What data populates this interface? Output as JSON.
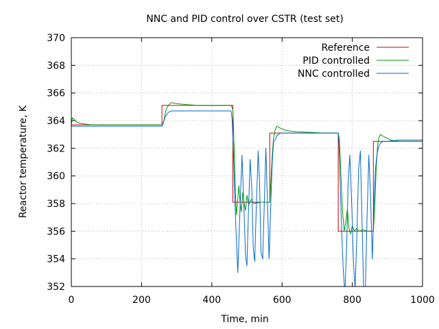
{
  "chart_data": {
    "type": "line",
    "title": "NNC and PID control over CSTR (test set)",
    "xlabel": "Time, min",
    "ylabel": "Reactor temperature, K",
    "xlim": [
      0,
      1000
    ],
    "ylim": [
      352,
      370
    ],
    "xticks": [
      0,
      200,
      400,
      600,
      800,
      1000
    ],
    "yticks": [
      352,
      354,
      356,
      358,
      360,
      362,
      364,
      366,
      368,
      370
    ],
    "grid": true,
    "legend_position": "top-right",
    "series": [
      {
        "name": "Reference",
        "color": "#cc0000",
        "x": [
          0,
          258,
          258,
          460,
          460,
          565,
          565,
          760,
          760,
          860,
          860,
          1000
        ],
        "y": [
          363.7,
          363.7,
          365.1,
          365.1,
          358.1,
          358.1,
          363.1,
          363.1,
          356.0,
          356.0,
          362.5,
          362.5
        ]
      },
      {
        "name": "PID controlled",
        "color": "#009900",
        "x": [
          0,
          3,
          8,
          15,
          25,
          40,
          60,
          100,
          200,
          258,
          262,
          266,
          270,
          276,
          284,
          295,
          310,
          330,
          360,
          400,
          455,
          460,
          463,
          467,
          470,
          473,
          477,
          480,
          484,
          488,
          492,
          496,
          500,
          505,
          512,
          520,
          540,
          565,
          568,
          572,
          576,
          580,
          585,
          592,
          600,
          610,
          620,
          640,
          680,
          720,
          760,
          763,
          767,
          772,
          777,
          782,
          786,
          790,
          795,
          800,
          806,
          812,
          820,
          830,
          845,
          860,
          864,
          868,
          872,
          876,
          880,
          886,
          893,
          900,
          910,
          920,
          935,
          950,
          970,
          1000
        ],
        "y": [
          363.7,
          364.2,
          364.1,
          363.9,
          363.8,
          363.75,
          363.7,
          363.7,
          363.7,
          363.7,
          363.8,
          364.3,
          364.8,
          365.1,
          365.3,
          365.25,
          365.2,
          365.15,
          365.1,
          365.1,
          365.1,
          364.8,
          362.5,
          359.0,
          357.2,
          358.0,
          359.3,
          358.2,
          357.4,
          358.8,
          358.0,
          357.5,
          358.6,
          357.9,
          358.3,
          358.0,
          358.1,
          358.1,
          359.5,
          361.5,
          362.8,
          363.3,
          363.6,
          363.5,
          363.4,
          363.3,
          363.25,
          363.2,
          363.15,
          363.1,
          363.1,
          362.7,
          360.5,
          357.5,
          356.0,
          356.8,
          357.6,
          356.3,
          355.8,
          356.4,
          356.0,
          356.2,
          356.0,
          356.1,
          356.0,
          356.0,
          357.8,
          360.5,
          362.2,
          362.8,
          363.0,
          362.9,
          362.8,
          362.7,
          362.6,
          362.55,
          362.5,
          362.5,
          362.5,
          362.5
        ]
      },
      {
        "name": "NNC controlled",
        "color": "#0066cc",
        "x": [
          0,
          258,
          262,
          268,
          276,
          285,
          300,
          330,
          400,
          455,
          458,
          462,
          466,
          469,
          474,
          478,
          483,
          486,
          491,
          496,
          500,
          504,
          509,
          514,
          518,
          522,
          527,
          532,
          536,
          540,
          545,
          550,
          554,
          558,
          563,
          565,
          568,
          572,
          576,
          580,
          585,
          590,
          595,
          605,
          640,
          700,
          760,
          762,
          766,
          770,
          774,
          779,
          784,
          788,
          793,
          799,
          803,
          808,
          813,
          818,
          823,
          828,
          832,
          837,
          842,
          847,
          852,
          857,
          860,
          863,
          866,
          870,
          874,
          878,
          882,
          887,
          893,
          900,
          915,
          935,
          960,
          1000
        ],
        "y": [
          363.6,
          363.6,
          363.9,
          364.3,
          364.6,
          364.7,
          364.7,
          364.7,
          364.7,
          364.7,
          364.0,
          361.5,
          358.0,
          356.0,
          353.0,
          356.0,
          359.5,
          361.5,
          358.0,
          354.2,
          353.5,
          357.0,
          361.2,
          359.0,
          354.8,
          353.8,
          358.0,
          361.8,
          359.5,
          354.5,
          354.0,
          358.5,
          362.0,
          358.5,
          354.0,
          355.5,
          358.0,
          361.0,
          362.5,
          362.6,
          362.9,
          363.0,
          363.1,
          363.1,
          363.1,
          363.1,
          363.1,
          362.5,
          359.0,
          356.0,
          353.3,
          351.5,
          355.0,
          359.5,
          361.5,
          357.5,
          354.0,
          351.8,
          355.8,
          360.5,
          361.8,
          356.5,
          352.0,
          351.5,
          357.0,
          361.5,
          358.5,
          354.0,
          356.5,
          359.0,
          360.5,
          361.5,
          362.0,
          362.3,
          362.4,
          362.5,
          362.5,
          362.5,
          362.55,
          362.6,
          362.6,
          362.6
        ]
      }
    ]
  }
}
